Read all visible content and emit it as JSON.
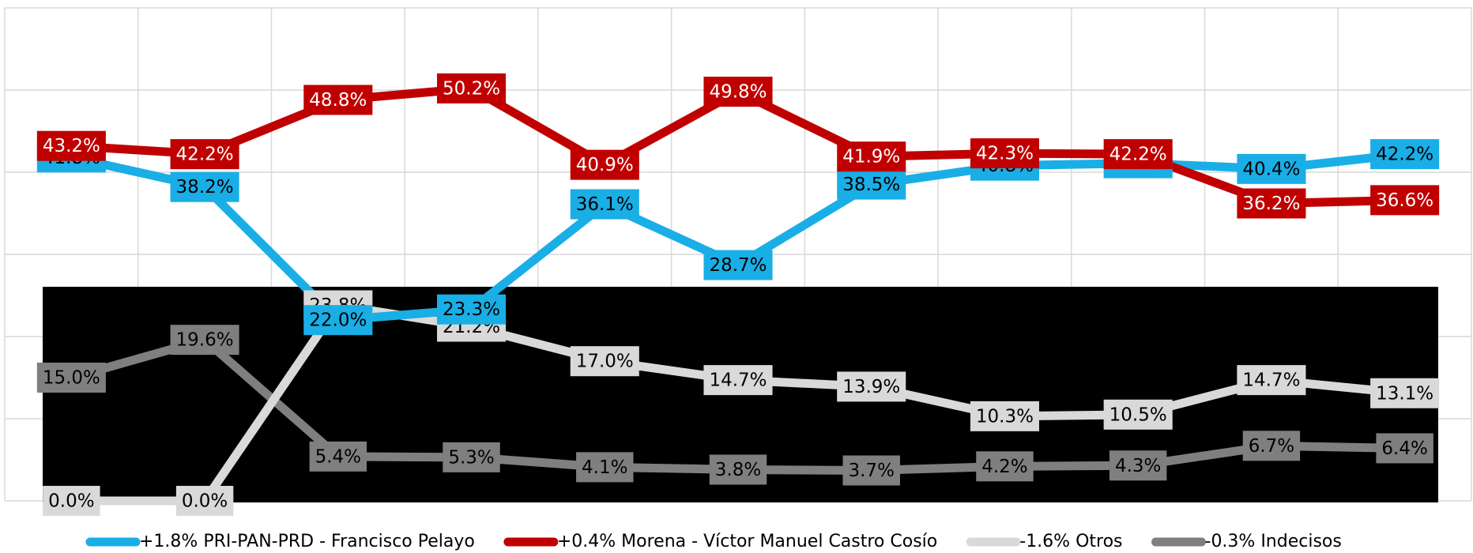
{
  "chart_data": {
    "type": "line",
    "categories": [
      null,
      null,
      null,
      null,
      null,
      null,
      null,
      null,
      null,
      null,
      null
    ],
    "ylim": [
      0,
      60
    ],
    "yticks": [
      0,
      10,
      20,
      30,
      40,
      50,
      60
    ],
    "grid": true,
    "series": [
      {
        "name": "+1.8% PRI-PAN-PRD - Francisco Pelayo",
        "color": "#19aee6",
        "label_text": "#000000",
        "values": [
          41.8,
          38.2,
          22.0,
          23.3,
          36.1,
          28.7,
          38.5,
          40.8,
          41.1,
          40.4,
          42.2
        ],
        "value_labels": [
          "41.8%",
          "38.2%",
          "22.0%",
          "23.3%",
          "36.1%",
          "28.7%",
          "38.5%",
          "40.8%",
          "41.1%",
          "40.4%",
          "42.2%"
        ]
      },
      {
        "name": "+0.4% Morena - Víctor Manuel Castro Cosío",
        "color": "#c00000",
        "label_text": "#ffffff",
        "values": [
          43.2,
          42.2,
          48.8,
          50.2,
          40.9,
          49.8,
          41.9,
          42.3,
          42.2,
          36.2,
          36.6
        ],
        "value_labels": [
          "43.2%",
          "42.2%",
          "48.8%",
          "50.2%",
          "40.9%",
          "49.8%",
          "41.9%",
          "42.3%",
          "42.2%",
          "36.2%",
          "36.6%"
        ]
      },
      {
        "name": "-1.6% Otros",
        "color": "#d9d9d9",
        "label_text": "#000000",
        "values": [
          0.0,
          0.0,
          23.8,
          21.2,
          17.0,
          14.7,
          13.9,
          10.3,
          10.5,
          14.7,
          13.1
        ],
        "value_labels": [
          "0.0%",
          "0.0%",
          "23.8%",
          "21.2%",
          "17.0%",
          "14.7%",
          "13.9%",
          "10.3%",
          "10.5%",
          "14.7%",
          "13.1%"
        ]
      },
      {
        "name": "-0.3% Indecisos",
        "color": "#7f7f7f",
        "label_text": "#000000",
        "values": [
          15.0,
          19.6,
          5.4,
          5.3,
          4.1,
          3.8,
          3.7,
          4.2,
          4.3,
          6.7,
          6.4
        ],
        "value_labels": [
          "15.0%",
          "19.6%",
          "5.4%",
          "5.3%",
          "4.1%",
          "3.8%",
          "3.7%",
          "4.2%",
          "4.3%",
          "6.7%",
          "6.4%"
        ]
      }
    ]
  }
}
